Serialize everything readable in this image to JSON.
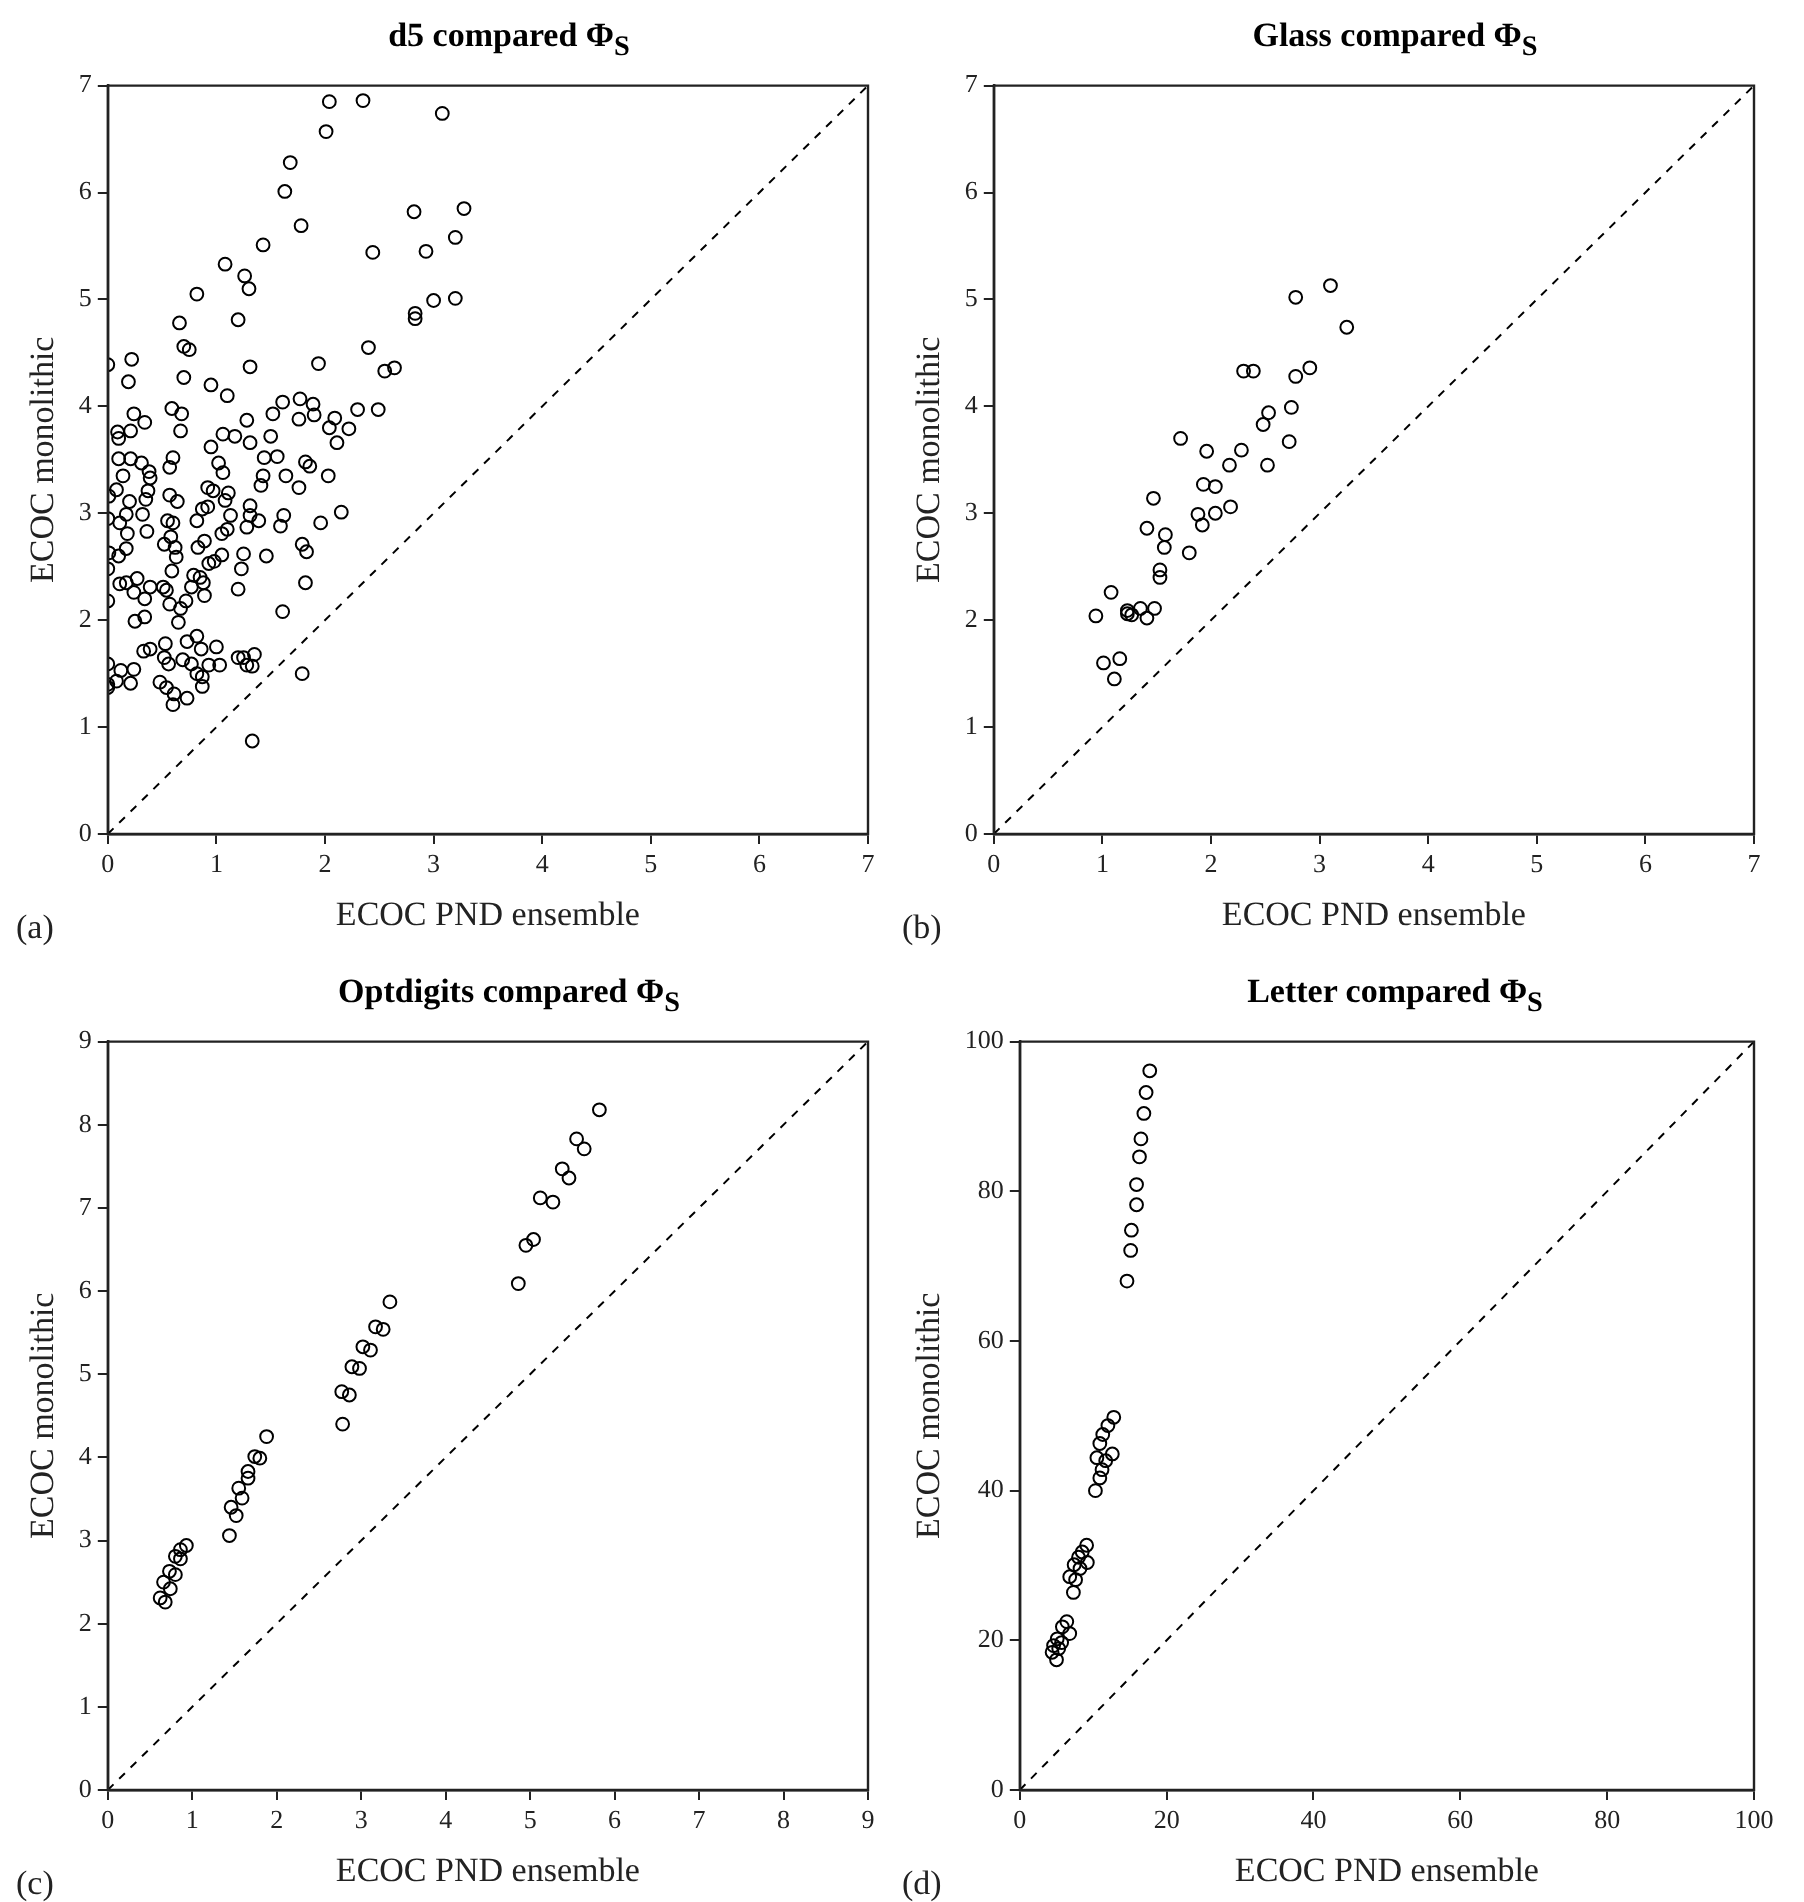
{
  "chart_data": [
    {
      "type": "scatter",
      "title": "d5 compared Φ$_{S}$",
      "xlabel": "ECOC PND ensemble",
      "ylabel": "ECOC monolithic",
      "xlim": [
        0,
        7
      ],
      "ylim": [
        0,
        7
      ],
      "xticks": [
        0,
        1,
        2,
        3,
        4,
        5,
        6,
        7
      ],
      "yticks": [
        0,
        1,
        2,
        3,
        4,
        5,
        6,
        7
      ],
      "annotations": [
        "(a)"
      ],
      "series": [
        {
          "type": "scatter",
          "color": "#000000",
          "marker": "circle",
          "x": [
            2.04,
            2.35,
            3.08,
            2.01,
            1.68,
            1.63,
            2.82,
            3.28,
            1.78,
            1.43,
            2.44,
            2.93,
            3.2,
            1.08,
            1.26,
            1.3,
            0.82,
            3.0,
            3.2,
            2.83,
            2.83,
            1.2,
            0.66,
            0.7,
            0.75,
            2.4,
            0,
            1.31,
            1.94,
            2.55,
            2.64,
            0.22,
            0.19,
            0.7,
            0.95,
            1.1,
            1.61,
            1.77,
            1.89,
            1.52,
            1.76,
            1.9,
            2.09,
            2.3,
            2.49,
            2.04,
            2.22,
            2.11,
            1.28,
            0.59,
            0.68,
            0.24,
            0.34,
            0.09,
            0.1,
            0.21,
            0.67,
            1.06,
            1.17,
            1.5,
            1.31,
            0.95,
            0.1,
            0.21,
            0.31,
            0.6,
            0.57,
            1.44,
            1.56,
            1.02,
            1.06,
            1.82,
            1.86,
            0.14,
            0.38,
            0.39,
            1.43,
            1.41,
            1.64,
            2.03,
            1.76,
            0.08,
            0.01,
            0.2,
            0.37,
            0.35,
            0.57,
            0.64,
            0.92,
            0.97,
            1.11,
            1.08,
            0.87,
            0.92,
            1.31,
            0.17,
            0.32,
            1.13,
            1.31,
            1.62,
            2.15,
            0,
            0.11,
            0.55,
            0.6,
            0.82,
            1.39,
            1.59,
            1.96,
            1.1,
            1.28,
            0.36,
            0.18,
            0.58,
            1.05,
            0.52,
            0.89,
            0.62,
            0.17,
            0.83,
            0.01,
            1.05,
            1.25,
            1.46,
            1.83,
            1.79,
            0.1,
            0.63,
            0.93,
            0.98,
            0,
            1.23,
            0.59,
            0.79,
            0.85,
            0.11,
            0.17,
            0.27,
            0.88,
            1.82,
            0.24,
            0.39,
            0.51,
            0.77,
            0.34,
            0.54,
            1.2,
            0.72,
            0.57,
            0.89,
            0,
            0.67,
            1.61,
            0.34,
            0.25,
            0.65,
            0.82,
            0.73,
            0.53,
            0.39,
            0.33,
            0.86,
            1.0,
            0.52,
            0.69,
            0.56,
            0,
            0.77,
            1.03,
            1.2,
            1.25,
            1.35,
            1.28,
            1.33,
            0.93,
            0.82,
            0.87,
            1.79,
            0.12,
            0.24,
            0.08,
            0.21,
            0,
            0,
            0.48,
            0.54,
            0.87,
            0.61,
            0.73,
            0.6,
            1.33
          ],
          "values": [
            6.85,
            6.86,
            6.74,
            6.57,
            6.28,
            6.01,
            5.82,
            5.85,
            5.69,
            5.51,
            5.44,
            5.45,
            5.58,
            5.33,
            5.22,
            5.1,
            5.05,
            4.99,
            5.01,
            4.87,
            4.82,
            4.81,
            4.78,
            4.56,
            4.53,
            4.55,
            4.39,
            4.37,
            4.4,
            4.33,
            4.36,
            4.44,
            4.23,
            4.27,
            4.2,
            4.1,
            4.04,
            4.07,
            4.02,
            3.93,
            3.88,
            3.92,
            3.89,
            3.97,
            3.97,
            3.8,
            3.79,
            3.66,
            3.87,
            3.98,
            3.93,
            3.93,
            3.85,
            3.76,
            3.7,
            3.77,
            3.77,
            3.74,
            3.72,
            3.72,
            3.66,
            3.62,
            3.51,
            3.51,
            3.47,
            3.52,
            3.43,
            3.52,
            3.53,
            3.47,
            3.38,
            3.48,
            3.44,
            3.35,
            3.39,
            3.33,
            3.35,
            3.26,
            3.35,
            3.35,
            3.24,
            3.22,
            3.16,
            3.11,
            3.21,
            3.13,
            3.17,
            3.11,
            3.24,
            3.21,
            3.19,
            3.12,
            3.04,
            3.06,
            3.07,
            2.99,
            2.99,
            2.98,
            2.98,
            2.98,
            3.01,
            2.95,
            2.91,
            2.93,
            2.91,
            2.93,
            2.93,
            2.88,
            2.91,
            2.85,
            2.87,
            2.83,
            2.81,
            2.78,
            2.81,
            2.71,
            2.74,
            2.68,
            2.67,
            2.68,
            2.63,
            2.61,
            2.62,
            2.6,
            2.64,
            2.71,
            2.6,
            2.59,
            2.53,
            2.55,
            2.48,
            2.48,
            2.46,
            2.42,
            2.4,
            2.34,
            2.35,
            2.39,
            2.35,
            2.35,
            2.26,
            2.31,
            2.31,
            2.31,
            2.2,
            2.28,
            2.29,
            2.18,
            2.15,
            2.23,
            2.18,
            2.11,
            2.08,
            2.03,
            1.99,
            1.98,
            1.85,
            1.8,
            1.78,
            1.73,
            1.71,
            1.73,
            1.75,
            1.65,
            1.63,
            1.59,
            1.59,
            1.59,
            1.58,
            1.65,
            1.65,
            1.68,
            1.58,
            1.57,
            1.58,
            1.5,
            1.47,
            1.5,
            1.53,
            1.54,
            1.43,
            1.41,
            1.4,
            1.37,
            1.42,
            1.37,
            1.38,
            1.31,
            1.27,
            1.21,
            0.87
          ]
        },
        {
          "type": "line",
          "color": "#000000",
          "line_style": "dashed",
          "marker": "none",
          "x": [
            0,
            7
          ],
          "values": [
            0,
            7
          ]
        }
      ]
    },
    {
      "type": "scatter",
      "title": "Glass compared Φ$_{S}$",
      "xlabel": "ECOC PND ensemble",
      "ylabel": "ECOC monolithic",
      "xlim": [
        0,
        7
      ],
      "ylim": [
        0,
        7
      ],
      "xticks": [
        0,
        1,
        2,
        3,
        4,
        5,
        6,
        7
      ],
      "yticks": [
        0,
        1,
        2,
        3,
        4,
        5,
        6,
        7
      ],
      "annotations": [
        "(b)"
      ],
      "series": [
        {
          "type": "scatter",
          "color": "#000000",
          "marker": "circle",
          "x": [
            3.1,
            2.78,
            3.25,
            2.3,
            2.39,
            2.91,
            2.78,
            2.74,
            2.53,
            2.48,
            2.72,
            1.72,
            1.96,
            2.28,
            2.17,
            2.52,
            1.93,
            2.04,
            1.47,
            2.18,
            1.88,
            2.04,
            1.92,
            1.41,
            1.58,
            1.57,
            1.8,
            1.53,
            1.53,
            1.08,
            0.94,
            1.23,
            1.23,
            1.27,
            1.35,
            1.41,
            1.48,
            1.01,
            1.16,
            1.11
          ],
          "values": [
            5.13,
            5.02,
            4.74,
            4.33,
            4.33,
            4.36,
            4.28,
            3.99,
            3.94,
            3.83,
            3.67,
            3.7,
            3.58,
            3.59,
            3.45,
            3.45,
            3.27,
            3.25,
            3.14,
            3.06,
            2.99,
            3.0,
            2.89,
            2.86,
            2.8,
            2.68,
            2.63,
            2.47,
            2.4,
            2.26,
            2.04,
            2.09,
            2.06,
            2.05,
            2.11,
            2.02,
            2.11,
            1.6,
            1.64,
            1.45
          ]
        },
        {
          "type": "line",
          "color": "#000000",
          "line_style": "dashed",
          "marker": "none",
          "x": [
            0,
            7
          ],
          "values": [
            0,
            7
          ]
        }
      ]
    },
    {
      "type": "scatter",
      "title": "Optdigits compared Φ$_{S}$",
      "xlabel": "ECOC PND ensemble",
      "ylabel": "ECOC monolithic",
      "xlim": [
        0,
        9
      ],
      "ylim": [
        0,
        9
      ],
      "xticks": [
        0,
        1,
        2,
        3,
        4,
        5,
        6,
        7,
        8,
        9
      ],
      "yticks": [
        0,
        1,
        2,
        3,
        4,
        5,
        6,
        7,
        8,
        9
      ],
      "annotations": [
        "(c)"
      ],
      "series": [
        {
          "type": "scatter",
          "color": "#000000",
          "marker": "circle",
          "x": [
            5.82,
            5.55,
            5.64,
            5.38,
            5.46,
            5.12,
            5.27,
            5.04,
            4.95,
            4.86,
            3.34,
            3.17,
            3.26,
            3.02,
            3.11,
            2.89,
            2.98,
            2.77,
            2.86,
            2.78,
            1.88,
            1.74,
            1.8,
            1.66,
            1.66,
            1.55,
            1.59,
            1.46,
            1.52,
            1.44,
            0.93,
            0.86,
            0.8,
            0.86,
            0.73,
            0.8,
            0.66,
            0.74,
            0.62,
            0.68
          ],
          "values": [
            8.18,
            7.83,
            7.71,
            7.47,
            7.36,
            7.12,
            7.07,
            6.62,
            6.55,
            6.09,
            5.87,
            5.57,
            5.54,
            5.33,
            5.29,
            5.09,
            5.07,
            4.79,
            4.75,
            4.4,
            4.25,
            4.01,
            3.99,
            3.83,
            3.75,
            3.63,
            3.51,
            3.4,
            3.3,
            3.06,
            2.94,
            2.89,
            2.81,
            2.78,
            2.63,
            2.59,
            2.5,
            2.42,
            2.31,
            2.26
          ]
        },
        {
          "type": "line",
          "color": "#000000",
          "line_style": "dashed",
          "marker": "none",
          "x": [
            0,
            9
          ],
          "values": [
            0,
            9
          ]
        }
      ]
    },
    {
      "type": "scatter",
      "title": "Letter compared Φ$_{S}$",
      "xlabel": "ECOC PND ensemble",
      "ylabel": "ECOC monolithic",
      "xlim": [
        0,
        100
      ],
      "ylim": [
        0,
        100
      ],
      "xticks": [
        0,
        20,
        40,
        60,
        80,
        100
      ],
      "yticks": [
        0,
        20,
        40,
        60,
        80,
        100
      ],
      "annotations": [
        "(d)"
      ],
      "series": [
        {
          "type": "scatter",
          "color": "#000000",
          "marker": "circle",
          "x": [
            17.7,
            17.2,
            16.9,
            16.5,
            16.3,
            15.9,
            15.9,
            15.2,
            15.1,
            14.6,
            12.8,
            12.0,
            11.3,
            10.9,
            12.6,
            10.5,
            11.7,
            11.2,
            10.9,
            10.3,
            9.1,
            8.5,
            8.0,
            9.2,
            7.4,
            8.2,
            6.8,
            7.6,
            7.3,
            6.4,
            5.8,
            6.8,
            5.1,
            5.7,
            4.6,
            5.3,
            4.4,
            5.0
          ],
          "values": [
            96.1,
            93.2,
            90.4,
            87.0,
            84.6,
            80.9,
            78.2,
            74.8,
            72.1,
            68.0,
            49.8,
            48.7,
            47.5,
            46.3,
            44.9,
            44.4,
            44.0,
            42.8,
            41.7,
            40.0,
            32.7,
            31.8,
            31.1,
            30.4,
            30.1,
            29.6,
            28.5,
            28.1,
            26.4,
            22.5,
            21.8,
            20.9,
            20.2,
            19.7,
            19.3,
            18.9,
            18.4,
            17.4
          ]
        },
        {
          "type": "line",
          "color": "#000000",
          "line_style": "dashed",
          "marker": "none",
          "x": [
            0,
            100
          ],
          "values": [
            0,
            100
          ]
        }
      ]
    }
  ]
}
